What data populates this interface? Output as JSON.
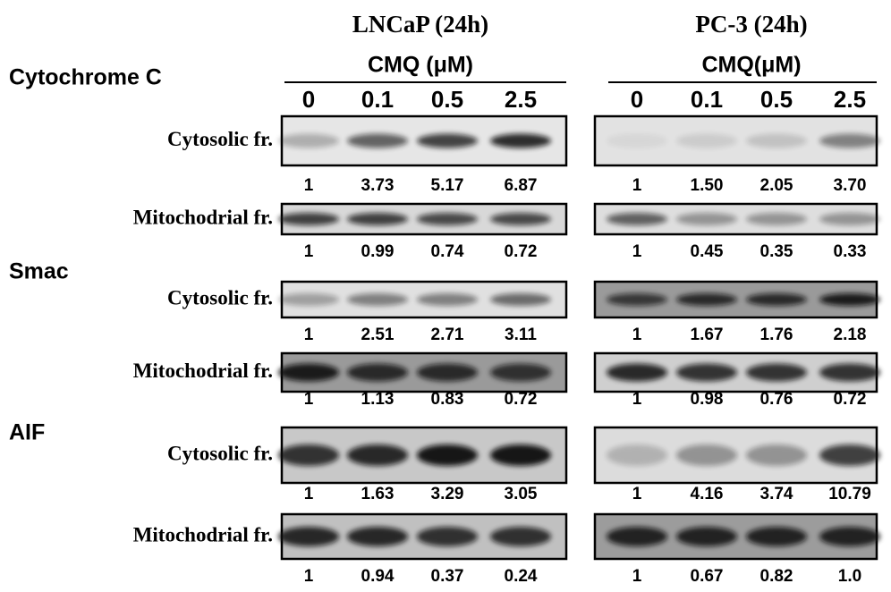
{
  "columns": [
    {
      "title": "LNCaP (24h)",
      "unit": "CMQ (μM)",
      "doses": [
        "0",
        "0.1",
        "0.5",
        "2.5"
      ]
    },
    {
      "title": "PC-3 (24h)",
      "unit": "CMQ(μM)",
      "doses": [
        "0",
        "0.1",
        "0.5",
        "2.5"
      ]
    }
  ],
  "sections": [
    {
      "name": "Cytochrome C",
      "rows": [
        {
          "label": "Cytosolic fr.",
          "values": [
            [
              "1",
              "3.73",
              "5.17",
              "6.87"
            ],
            [
              "1",
              "1.50",
              "2.05",
              "3.70"
            ]
          ]
        },
        {
          "label": "Mitochodrial  fr.",
          "values": [
            [
              "1",
              "0.99",
              "0.74",
              "0.72"
            ],
            [
              "1",
              "0.45",
              "0.35",
              "0.33"
            ]
          ]
        }
      ]
    },
    {
      "name": "Smac",
      "rows": [
        {
          "label": "Cytosolic fr.",
          "values": [
            [
              "1",
              "2.51",
              "2.71",
              "3.11"
            ],
            [
              "1",
              "1.67",
              "1.76",
              "2.18"
            ]
          ]
        },
        {
          "label": "Mitochodrial  fr.",
          "values": [
            [
              "1",
              "1.13",
              "0.83",
              "0.72"
            ],
            [
              "1",
              "0.98",
              "0.76",
              "0.72"
            ]
          ]
        }
      ]
    },
    {
      "name": "AIF",
      "rows": [
        {
          "label": "Cytosolic fr.",
          "values": [
            [
              "1",
              "1.63",
              "3.29",
              "3.05"
            ],
            [
              "1",
              "4.16",
              "3.74",
              "10.79"
            ]
          ]
        },
        {
          "label": "Mitochodrial  fr.",
          "values": [
            [
              "1",
              "0.94",
              "0.37",
              "0.24"
            ],
            [
              "1",
              "0.67",
              "0.82",
              "1.0"
            ]
          ]
        }
      ]
    }
  ]
}
